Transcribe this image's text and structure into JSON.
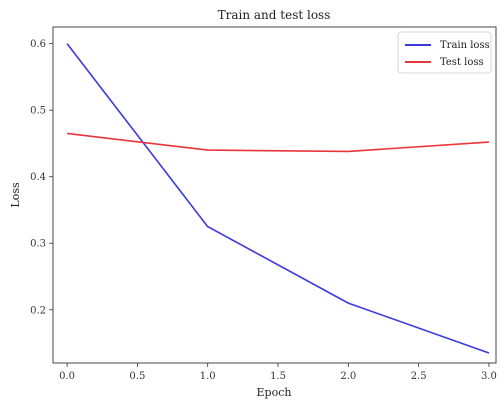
{
  "chart_data": {
    "type": "line",
    "title": "Train and test loss",
    "xlabel": "Epoch",
    "ylabel": "Loss",
    "xlim": [
      -0.1,
      3.05
    ],
    "ylim": [
      0.12,
      0.625
    ],
    "xticks": [
      0.0,
      0.5,
      1.0,
      1.5,
      2.0,
      2.5,
      3.0
    ],
    "xtick_labels": [
      "0.0",
      "0.5",
      "1.0",
      "1.5",
      "2.0",
      "2.5",
      "3.0"
    ],
    "yticks": [
      0.2,
      0.3,
      0.4,
      0.5,
      0.6
    ],
    "ytick_labels": [
      "0.2",
      "0.3",
      "0.4",
      "0.5",
      "0.6"
    ],
    "grid": false,
    "legend_position": "top-right",
    "x": [
      0,
      1,
      2,
      3
    ],
    "series": [
      {
        "name": "Train loss",
        "color": "#3b3bdc",
        "values": [
          0.6,
          0.325,
          0.21,
          0.135
        ]
      },
      {
        "name": "Test loss",
        "color": "#e8353a",
        "values": [
          0.465,
          0.44,
          0.438,
          0.452
        ]
      }
    ]
  }
}
